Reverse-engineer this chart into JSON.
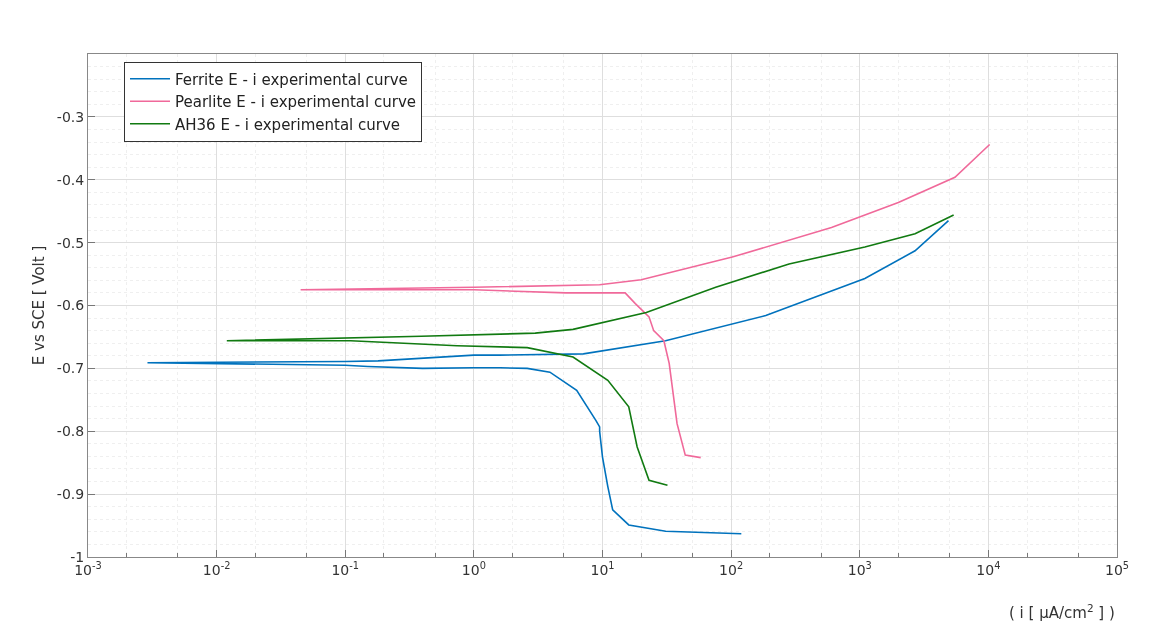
{
  "chart_data": {
    "type": "line",
    "xlabel": "( i [ μA/cm$^{2}$ ] )",
    "ylabel": "E vs SCE [ Volt ]",
    "log": "x",
    "xlim": [
      0.001,
      100000
    ],
    "ylim": [
      -1,
      -0.2
    ],
    "xticks": [
      {
        "value": 0.001,
        "label": "10$^{-3}$"
      },
      {
        "value": 0.01,
        "label": "10$^{-2}$"
      },
      {
        "value": 0.1,
        "label": "10$^{-1}$"
      },
      {
        "value": 1,
        "label": "10$^{0}$"
      },
      {
        "value": 10,
        "label": "10$^{1}$"
      },
      {
        "value": 100,
        "label": "10$^{2}$"
      },
      {
        "value": 1000,
        "label": "10$^{3}$"
      },
      {
        "value": 10000,
        "label": "10$^{4}$"
      },
      {
        "value": 100000,
        "label": "10$^{5}$"
      }
    ],
    "yticks": [
      -1,
      -0.9,
      -0.8,
      -0.7,
      -0.6,
      -0.5,
      -0.4,
      -0.3
    ],
    "grid": true,
    "legend": "top left",
    "marker": "none",
    "line_style": "solid",
    "series": [
      {
        "name": "Ferrite E - i experimental curve",
        "color": "#0072bd",
        "x": [
          120,
          31,
          16,
          12,
          11,
          10,
          9.5,
          9.5,
          8.9,
          6.3,
          3.9,
          2.6,
          1.6,
          1,
          0.4,
          0.15,
          0.1,
          0.0029,
          0.1,
          0.18,
          1,
          1.58,
          7.1,
          30.9,
          186,
          1096,
          2692,
          4898
        ],
        "values": [
          -0.963,
          -0.959,
          -0.949,
          -0.925,
          -0.888,
          -0.841,
          -0.8,
          -0.793,
          -0.783,
          -0.735,
          -0.706,
          -0.7,
          -0.699,
          -0.699,
          -0.7,
          -0.697,
          -0.695,
          -0.691,
          -0.689,
          -0.688,
          -0.679,
          -0.679,
          -0.677,
          -0.656,
          -0.616,
          -0.557,
          -0.513,
          -0.465
        ]
      },
      {
        "name": "Pearlite E - i experimental curve",
        "color": "#f0699a",
        "x": [
          58,
          44,
          38,
          33,
          30,
          25,
          23,
          18,
          15,
          5.2,
          1,
          0.045,
          1,
          9.5,
          20,
          102,
          603,
          1995,
          5495,
          10233
        ],
        "values": [
          -0.842,
          -0.838,
          -0.788,
          -0.692,
          -0.656,
          -0.64,
          -0.618,
          -0.597,
          -0.58,
          -0.58,
          -0.575,
          -0.575,
          -0.571,
          -0.567,
          -0.559,
          -0.523,
          -0.476,
          -0.436,
          -0.396,
          -0.344
        ]
      },
      {
        "name": "AH36 E - i experimental curve",
        "color": "#117a11",
        "x": [
          32,
          23,
          18.6,
          16,
          11,
          5.9,
          2.6,
          0.74,
          0.11,
          0.012,
          0.39,
          3,
          5.9,
          21.9,
          75.9,
          282,
          1096,
          2692,
          5370
        ],
        "values": [
          -0.886,
          -0.878,
          -0.825,
          -0.761,
          -0.719,
          -0.682,
          -0.667,
          -0.664,
          -0.656,
          -0.656,
          -0.649,
          -0.644,
          -0.638,
          -0.611,
          -0.571,
          -0.534,
          -0.507,
          -0.486,
          -0.456
        ]
      }
    ]
  }
}
